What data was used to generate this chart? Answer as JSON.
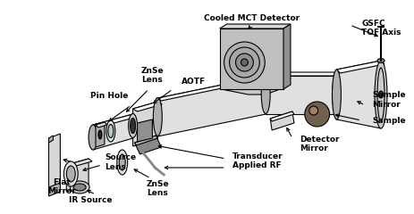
{
  "labels": {
    "cooled_mct": "Cooled MCT Detector",
    "gsfc_tof": "GSFC\nTOF Axis",
    "aotf": "AOTF",
    "znse_lens_top": "ZnSe\nLens",
    "pin_hole": "Pin Hole",
    "sample_mirror": "Sample\nMirror",
    "sample": "Sample",
    "detector_mirror": "Detector\nMirror",
    "transducer": "Transducer",
    "applied_rf": "Applied RF",
    "znse_lens_bot": "ZnSe\nLens",
    "flat_mirror": "Flat\nMirror",
    "source_lens": "Source\nLens",
    "ir_source": "IR Source"
  },
  "colors": {
    "light_gray": "#d8d8d8",
    "mid_gray": "#b0b0b0",
    "dark_gray": "#888888",
    "very_dark": "#555555",
    "white": "#f8f8f8",
    "black": "#000000",
    "tube_light": "#e0e0e0",
    "tube_mid": "#c8c8c8",
    "tube_dark": "#a0a0a0",
    "plate_face": "#c0c0c0",
    "plate_side": "#909090"
  }
}
